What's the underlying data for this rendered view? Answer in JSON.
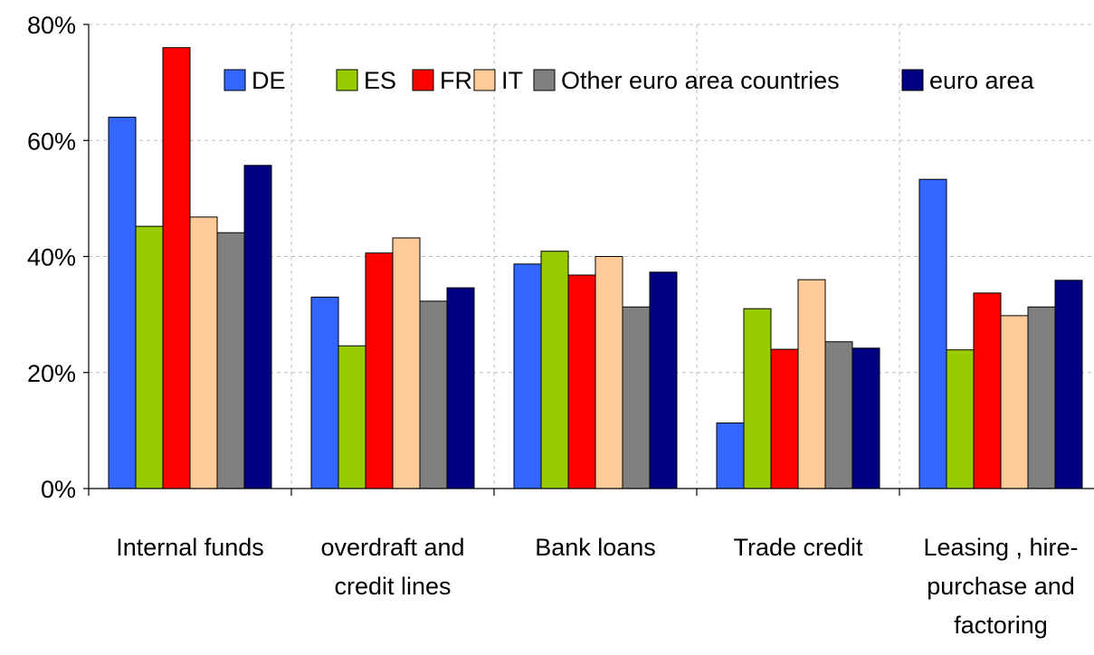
{
  "chart_data": {
    "type": "bar",
    "title": "",
    "xlabel": "",
    "ylabel": "",
    "ylim": [
      0,
      80
    ],
    "yticks": [
      "0%",
      "20%",
      "40%",
      "60%",
      "80%"
    ],
    "ytick_values": [
      0,
      20,
      40,
      60,
      80
    ],
    "grid": true,
    "legend_position": "top-right",
    "categories": [
      [
        "Internal funds"
      ],
      [
        "overdraft and",
        "credit lines"
      ],
      [
        "Bank loans"
      ],
      [
        "Trade credit"
      ],
      [
        "Leasing , hire-",
        "purchase and",
        "factoring"
      ]
    ],
    "series": [
      {
        "name": "DE",
        "color": "#3366FF",
        "values": [
          64,
          33,
          38.7,
          11.3,
          53.3
        ]
      },
      {
        "name": "ES",
        "color": "#99CC00",
        "values": [
          45.2,
          24.6,
          40.9,
          31,
          23.9
        ]
      },
      {
        "name": "FR",
        "color": "#FF0000",
        "values": [
          76,
          40.6,
          36.8,
          24,
          33.7
        ]
      },
      {
        "name": "IT",
        "color": "#FFCC99",
        "values": [
          46.8,
          43.2,
          40,
          36,
          29.8
        ]
      },
      {
        "name": "Other euro area countries",
        "color": "#808080",
        "values": [
          44.1,
          32.3,
          31.3,
          25.3,
          31.3
        ]
      },
      {
        "name": "euro area",
        "color": "#000080",
        "values": [
          55.7,
          34.6,
          37.3,
          24.2,
          35.9
        ]
      }
    ]
  }
}
